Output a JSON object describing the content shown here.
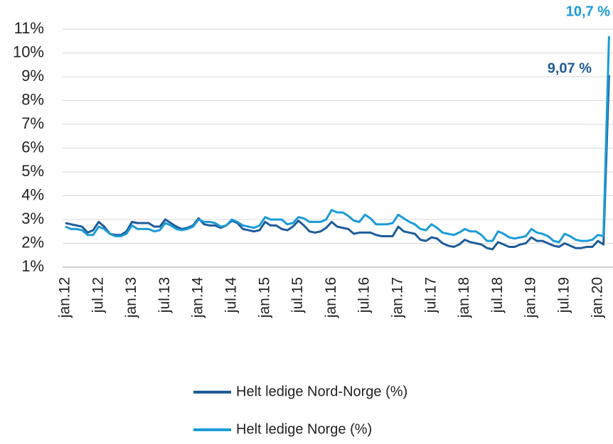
{
  "chart_data": {
    "type": "line",
    "categories": [
      "jan.12",
      null,
      null,
      null,
      null,
      null,
      "jul.12",
      null,
      null,
      null,
      null,
      null,
      "jan.13",
      null,
      null,
      null,
      null,
      null,
      "jul.13",
      null,
      null,
      null,
      null,
      null,
      "jan.14",
      null,
      null,
      null,
      null,
      null,
      "jul.14",
      null,
      null,
      null,
      null,
      null,
      "jan.15",
      null,
      null,
      null,
      null,
      null,
      "jul.15",
      null,
      null,
      null,
      null,
      null,
      "jan.16",
      null,
      null,
      null,
      null,
      null,
      "jul.16",
      null,
      null,
      null,
      null,
      null,
      "jan.17",
      null,
      null,
      null,
      null,
      null,
      "jul.17",
      null,
      null,
      null,
      null,
      null,
      "jan.18",
      null,
      null,
      null,
      null,
      null,
      "jul.18",
      null,
      null,
      null,
      null,
      null,
      "jan.19",
      null,
      null,
      null,
      null,
      null,
      "jul.19",
      null,
      null,
      null,
      null,
      null,
      "jan.20",
      null,
      null
    ],
    "series": [
      {
        "name": "Helt ledige Nord-Norge (%)",
        "color": "#1f5c99",
        "values": [
          2.85,
          2.8,
          2.75,
          2.7,
          2.45,
          2.55,
          2.9,
          2.7,
          2.4,
          2.35,
          2.35,
          2.5,
          2.9,
          2.85,
          2.85,
          2.85,
          2.7,
          2.7,
          3.0,
          2.85,
          2.7,
          2.6,
          2.65,
          2.75,
          3.05,
          2.8,
          2.75,
          2.75,
          2.65,
          2.75,
          2.95,
          2.85,
          2.6,
          2.55,
          2.5,
          2.55,
          2.9,
          2.75,
          2.75,
          2.6,
          2.55,
          2.7,
          2.95,
          2.75,
          2.5,
          2.45,
          2.5,
          2.65,
          2.9,
          2.7,
          2.65,
          2.6,
          2.4,
          2.45,
          2.45,
          2.45,
          2.35,
          2.3,
          2.3,
          2.3,
          2.7,
          2.5,
          2.45,
          2.4,
          2.15,
          2.1,
          2.25,
          2.2,
          2.0,
          1.9,
          1.85,
          1.95,
          2.15,
          2.05,
          2.0,
          1.95,
          1.8,
          1.75,
          2.05,
          1.95,
          1.85,
          1.85,
          1.95,
          2.0,
          2.25,
          2.1,
          2.1,
          2.0,
          1.9,
          1.85,
          2.0,
          1.9,
          1.8,
          1.8,
          1.85,
          1.85,
          2.1,
          1.95,
          9.07
        ],
        "value_labels": [
          null,
          null,
          null,
          null,
          null,
          null,
          null,
          null,
          null,
          null,
          null,
          null,
          null,
          null,
          null,
          null,
          null,
          null,
          null,
          null,
          null,
          null,
          null,
          null,
          null,
          null,
          null,
          null,
          null,
          null,
          null,
          null,
          null,
          null,
          null,
          null,
          null,
          null,
          null,
          null,
          null,
          null,
          null,
          null,
          null,
          null,
          null,
          null,
          null,
          null,
          null,
          null,
          null,
          null,
          null,
          null,
          null,
          null,
          null,
          null,
          null,
          null,
          null,
          null,
          null,
          null,
          null,
          null,
          null,
          null,
          null,
          null,
          null,
          null,
          null,
          null,
          null,
          null,
          null,
          null,
          null,
          null,
          null,
          null,
          null,
          null,
          null,
          null,
          null,
          null,
          null,
          null,
          null,
          null,
          null,
          null,
          null,
          null,
          "9,07 %"
        ]
      },
      {
        "name": "Helt ledige Norge (%)",
        "color": "#1b9bd7",
        "values": [
          2.7,
          2.6,
          2.6,
          2.55,
          2.35,
          2.35,
          2.7,
          2.6,
          2.4,
          2.3,
          2.3,
          2.4,
          2.75,
          2.6,
          2.6,
          2.6,
          2.5,
          2.55,
          2.85,
          2.75,
          2.6,
          2.55,
          2.6,
          2.7,
          3.0,
          2.9,
          2.9,
          2.85,
          2.7,
          2.75,
          3.0,
          2.9,
          2.75,
          2.7,
          2.65,
          2.75,
          3.1,
          3.0,
          3.0,
          3.0,
          2.8,
          2.85,
          3.1,
          3.05,
          2.9,
          2.9,
          2.9,
          3.0,
          3.4,
          3.3,
          3.3,
          3.15,
          2.95,
          2.9,
          3.2,
          3.05,
          2.8,
          2.8,
          2.8,
          2.85,
          3.2,
          3.05,
          2.9,
          2.8,
          2.6,
          2.55,
          2.8,
          2.65,
          2.45,
          2.4,
          2.35,
          2.45,
          2.6,
          2.5,
          2.5,
          2.35,
          2.1,
          2.1,
          2.5,
          2.4,
          2.25,
          2.2,
          2.25,
          2.3,
          2.6,
          2.45,
          2.4,
          2.3,
          2.1,
          2.05,
          2.4,
          2.3,
          2.15,
          2.1,
          2.1,
          2.15,
          2.35,
          2.3,
          10.7
        ],
        "value_labels": [
          null,
          null,
          null,
          null,
          null,
          null,
          null,
          null,
          null,
          null,
          null,
          null,
          null,
          null,
          null,
          null,
          null,
          null,
          null,
          null,
          null,
          null,
          null,
          null,
          null,
          null,
          null,
          null,
          null,
          null,
          null,
          null,
          null,
          null,
          null,
          null,
          null,
          null,
          null,
          null,
          null,
          null,
          null,
          null,
          null,
          null,
          null,
          null,
          null,
          null,
          null,
          null,
          null,
          null,
          null,
          null,
          null,
          null,
          null,
          null,
          null,
          null,
          null,
          null,
          null,
          null,
          null,
          null,
          null,
          null,
          null,
          null,
          null,
          null,
          null,
          null,
          null,
          null,
          null,
          null,
          null,
          null,
          null,
          null,
          null,
          null,
          null,
          null,
          null,
          null,
          null,
          null,
          null,
          null,
          null,
          null,
          null,
          null,
          "10,7 %"
        ]
      }
    ],
    "ylim": [
      1,
      11
    ],
    "yticks": [
      {
        "value": 1,
        "label": "1%"
      },
      {
        "value": 2,
        "label": "2%"
      },
      {
        "value": 3,
        "label": "3%"
      },
      {
        "value": 4,
        "label": "4%"
      },
      {
        "value": 5,
        "label": "5%"
      },
      {
        "value": 6,
        "label": "6%"
      },
      {
        "value": 7,
        "label": "7%"
      },
      {
        "value": 8,
        "label": "8%"
      },
      {
        "value": 9,
        "label": "9%"
      },
      {
        "value": 10,
        "label": "10%"
      },
      {
        "value": 11,
        "label": "11%"
      }
    ],
    "grid": true
  }
}
